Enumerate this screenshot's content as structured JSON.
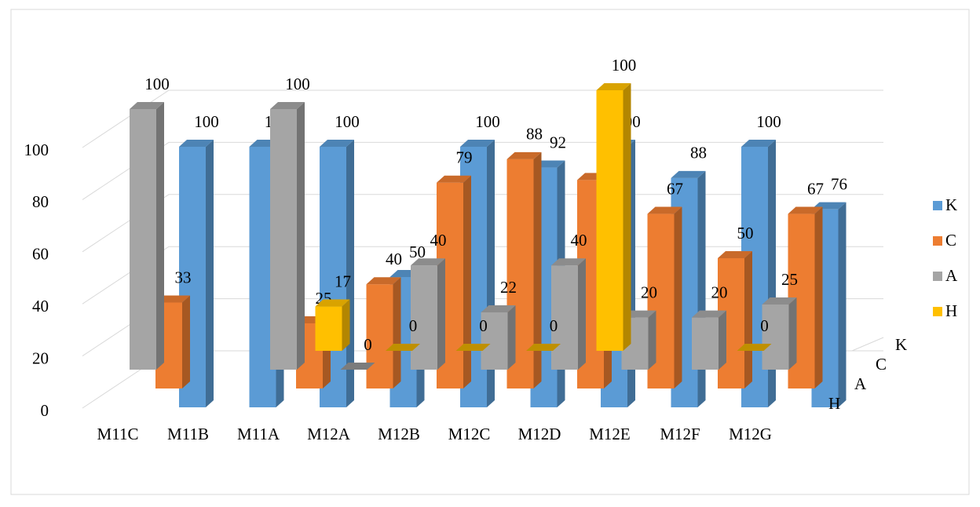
{
  "chart_data": {
    "type": "bar3d",
    "categories": [
      "M11C",
      "M11B",
      "M11A",
      "M12A",
      "M12B",
      "M12C",
      "M12D",
      "M12E",
      "M12F",
      "M12G"
    ],
    "series": [
      {
        "name": "K",
        "color": "#5b9bd5",
        "values": [
          100,
          100,
          100,
          50,
          100,
          92,
          100,
          88,
          100,
          76
        ]
      },
      {
        "name": "C",
        "color": "#ed7d31",
        "values": [
          33,
          null,
          25,
          40,
          79,
          88,
          80,
          67,
          50,
          67
        ]
      },
      {
        "name": "A",
        "color": "#a5a5a5",
        "values": [
          100,
          null,
          100,
          0,
          40,
          22,
          40,
          20,
          20,
          25
        ]
      },
      {
        "name": "H",
        "color": "#ffc000",
        "values": [
          null,
          null,
          null,
          17,
          0,
          0,
          0,
          100,
          null,
          0
        ]
      }
    ],
    "ylim": [
      0,
      100
    ],
    "yticks": [
      0,
      20,
      40,
      60,
      80,
      100
    ],
    "grid": true,
    "legend": "right"
  }
}
